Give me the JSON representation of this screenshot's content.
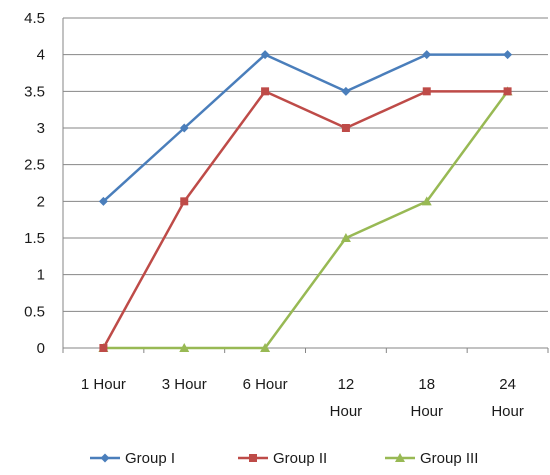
{
  "chart_data": {
    "type": "line",
    "categories": [
      "1 Hour",
      "3 Hour",
      "6 Hour",
      "12\nHour",
      "18\nHour",
      "24\nHour"
    ],
    "series": [
      {
        "name": "Group I",
        "values": [
          2,
          3,
          4,
          3.5,
          4,
          4
        ],
        "color": "#4a7ebb",
        "marker": "diamond"
      },
      {
        "name": "Group II",
        "values": [
          0,
          2,
          3.5,
          3,
          3.5,
          3.5
        ],
        "color": "#be4b48",
        "marker": "square"
      },
      {
        "name": "Group III",
        "values": [
          0,
          0,
          0,
          1.5,
          2,
          3.5
        ],
        "color": "#98b954",
        "marker": "triangle"
      }
    ],
    "y_ticks": [
      "0",
      "0.5",
      "1",
      "1.5",
      "2",
      "2.5",
      "3",
      "3.5",
      "4",
      "4.5"
    ],
    "ylim": [
      0,
      4.5
    ],
    "grid": "horizontal",
    "legend_position": "bottom",
    "gridline_color": "#868686"
  }
}
